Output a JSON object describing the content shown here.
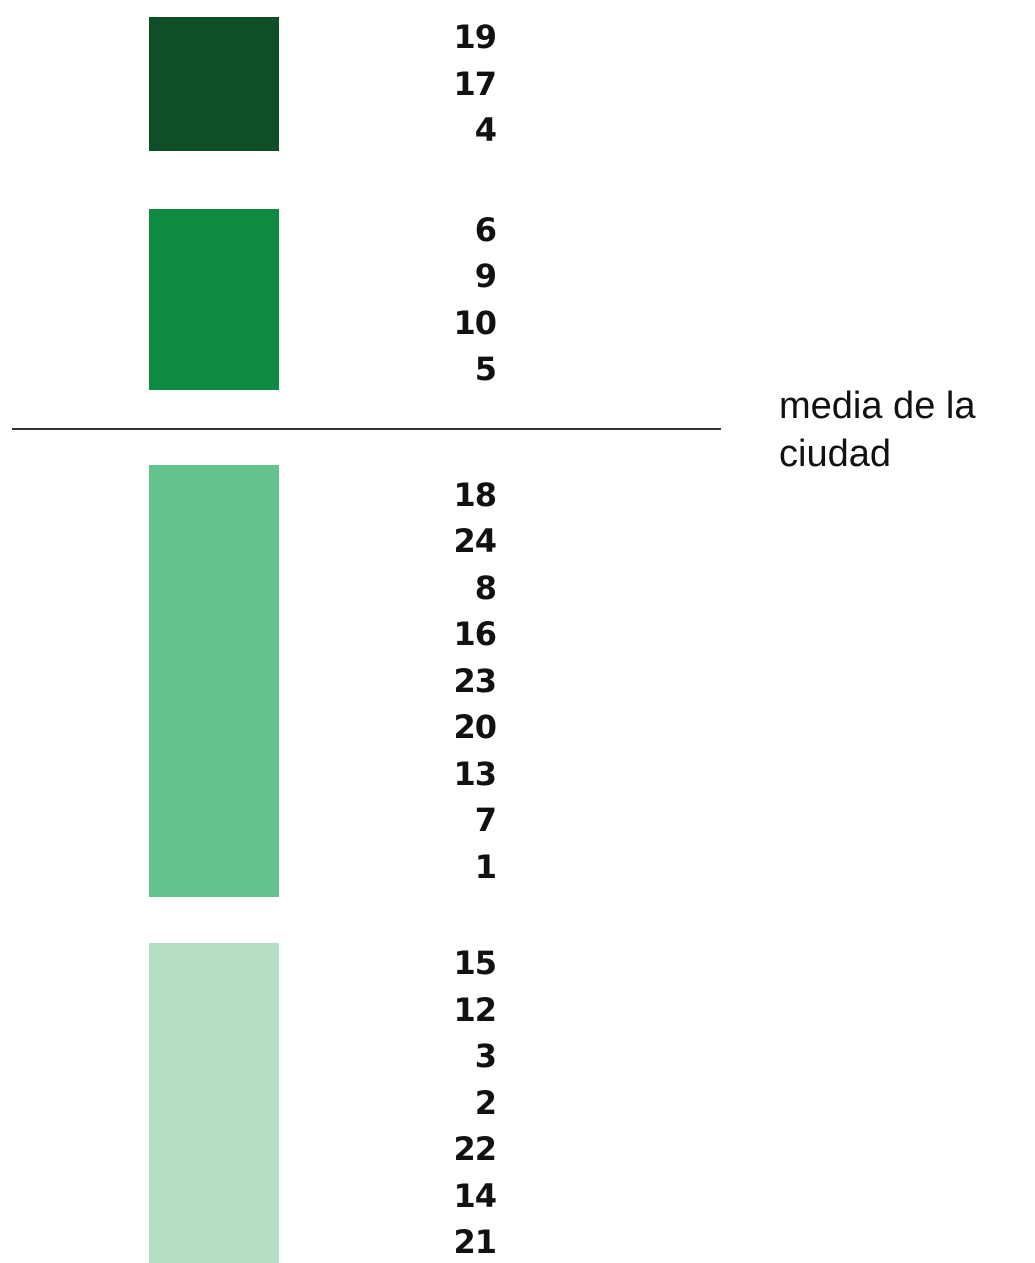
{
  "groups": [
    {
      "color": "#0f4f27",
      "items": [
        19,
        17,
        4
      ]
    },
    {
      "color": "#0e8a43",
      "items": [
        6,
        9,
        10,
        5
      ]
    },
    {
      "color": "#64c38d",
      "items": [
        18,
        24,
        8,
        16,
        23,
        20,
        13,
        7,
        1
      ]
    },
    {
      "color": "#b5ddc3",
      "items": [
        15,
        12,
        3,
        2,
        22,
        14,
        21
      ]
    }
  ],
  "reference": {
    "label": "media de la ciudad"
  }
}
